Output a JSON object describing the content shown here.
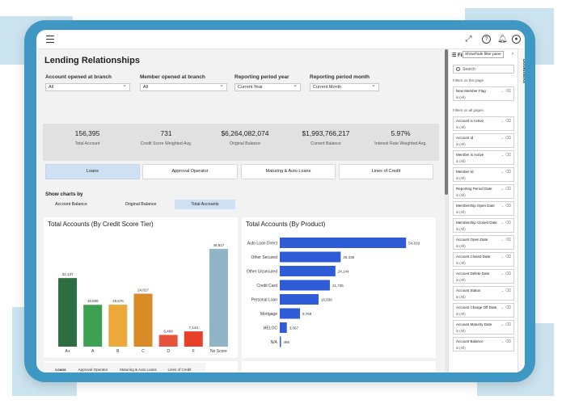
{
  "report": {
    "title": "Lending Relationships",
    "slicers": [
      {
        "label": "Account opened at branch",
        "value": "All"
      },
      {
        "label": "Member opened at branch",
        "value": "All"
      },
      {
        "label": "Reporting period year",
        "value": "Current Year"
      },
      {
        "label": "Reporting period month",
        "value": "Current Month"
      }
    ],
    "kpis": [
      {
        "value": "156,395",
        "label": "Total Account"
      },
      {
        "value": "731",
        "label": "Credit Score Weighted Avg."
      },
      {
        "value": "$6,264,082,074",
        "label": "Original Balance"
      },
      {
        "value": "$1,993,766,217",
        "label": "Current Balance"
      },
      {
        "value": "5.97%",
        "label": "Interest Rate Weighted Avg."
      }
    ],
    "tabs": [
      "Loans",
      "Approval Operator",
      "Maturing & Auto Loans",
      "Lines of Credit"
    ],
    "active_tab": "Loans",
    "show_by_label": "Show charts by",
    "show_by_options": [
      "Account Balance",
      "Original Balance",
      "Total Accounts"
    ],
    "show_by_selected": "Total Accounts",
    "bottom_tabs": [
      "Loans",
      "Approval Operator",
      "Maturing & Auto Loans",
      "Lines of Credit"
    ]
  },
  "chart_data": [
    {
      "type": "bar",
      "title": "Total Accounts (By Credit Score Tier)",
      "categories": [
        "A+",
        "A",
        "B",
        "C",
        "D",
        "F",
        "No Score"
      ],
      "values": [
        32137,
        19606,
        19676,
        24817,
        5498,
        7144,
        45817
      ],
      "labels": [
        "32,137",
        "19,606",
        "19,676",
        "24,817",
        "5,498",
        "7,144",
        "45,817"
      ],
      "colors": [
        "#2c6e3f",
        "#3ea053",
        "#eaa93a",
        "#d98b27",
        "#e7533c",
        "#e83f2a",
        "#8fb5c6"
      ],
      "ylim": [
        0,
        50000
      ]
    },
    {
      "type": "bar",
      "orientation": "horizontal",
      "title": "Total Accounts (By Product)",
      "categories": [
        "Auto Loan Direct",
        "Other Secured",
        "Other Unsecured",
        "Credit Card",
        "Personal Loan",
        "Mortgage",
        "HELOC",
        "N/A"
      ],
      "values": [
        54819,
        26438,
        24144,
        21735,
        16838,
        8769,
        3067,
        465
      ],
      "labels": [
        "54,819",
        "26,438",
        "24,144",
        "21,735",
        "16,838",
        "8,769",
        "3,067",
        "465"
      ],
      "color": "#2e5bd6",
      "xlim": [
        0,
        60000
      ]
    }
  ],
  "filters": {
    "header": "Filte",
    "tooltip": "Show/hide filter pane",
    "search_placeholder": "Search",
    "section_page": "Filters on this page",
    "section_all": "Filters on all pages",
    "page_filters": [
      {
        "name": "New Member Flag",
        "state": "is (All)"
      }
    ],
    "all_filters": [
      {
        "name": "Account is Active",
        "state": "is (All)"
      },
      {
        "name": "Account Id",
        "state": "is (All)"
      },
      {
        "name": "Member is Active",
        "state": "is (All)"
      },
      {
        "name": "Member Id",
        "state": "is (All)"
      },
      {
        "name": "Reporting Period Date",
        "state": "is (All)"
      },
      {
        "name": "Membership Open Date",
        "state": "is (All)"
      },
      {
        "name": "Membership Closed Date",
        "state": "is (All)"
      },
      {
        "name": "Account Open Date",
        "state": "is (All)"
      },
      {
        "name": "Account Closed Date",
        "state": "is (All)"
      },
      {
        "name": "Account Delete Date",
        "state": "is (All)"
      },
      {
        "name": "Account Status",
        "state": "is (All)"
      },
      {
        "name": "Account Charge Off Date",
        "state": "is (All)"
      },
      {
        "name": "Account Maturity Date",
        "state": "is (All)"
      },
      {
        "name": "Account Balance",
        "state": "is (All)"
      }
    ]
  },
  "bookmarks_label": "Bookmarks"
}
